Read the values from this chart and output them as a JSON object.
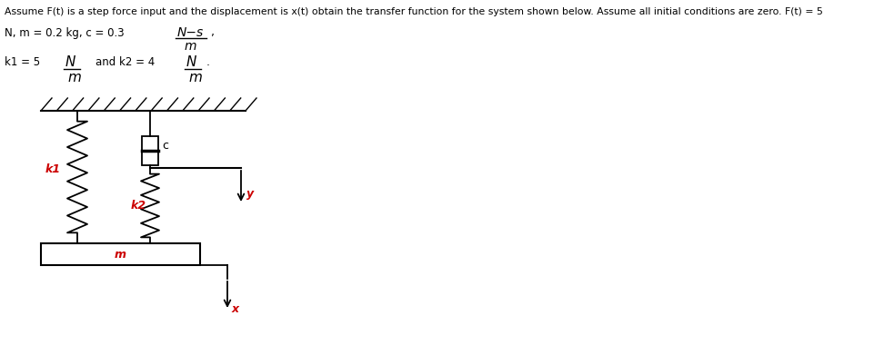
{
  "title_text": "Assume F(t) is a step force input and the displacement is x(t) obtain the transfer function for the system shown below. Assume all initial conditions are zero. F(t) = 5",
  "line1_left": "N, m = 0.2 kg, c = 0.3",
  "line1_frac_num": "N−s",
  "line1_frac_den": "m",
  "line2_left": "k1 = 5",
  "line2_frac1_num": "N",
  "line2_frac1_den": "m",
  "line2_mid": "and k2 = 4",
  "line2_frac2_num": "N",
  "line2_frac2_den": "m",
  "label_k1": "k1",
  "label_k2": "k2",
  "label_c": "c",
  "label_m": "m",
  "label_y": "y",
  "label_x": "x",
  "bg_color": "#ffffff",
  "text_color": "#000000",
  "red_color": "#cc0000",
  "figsize": [
    9.72,
    3.8
  ],
  "dpi": 100
}
